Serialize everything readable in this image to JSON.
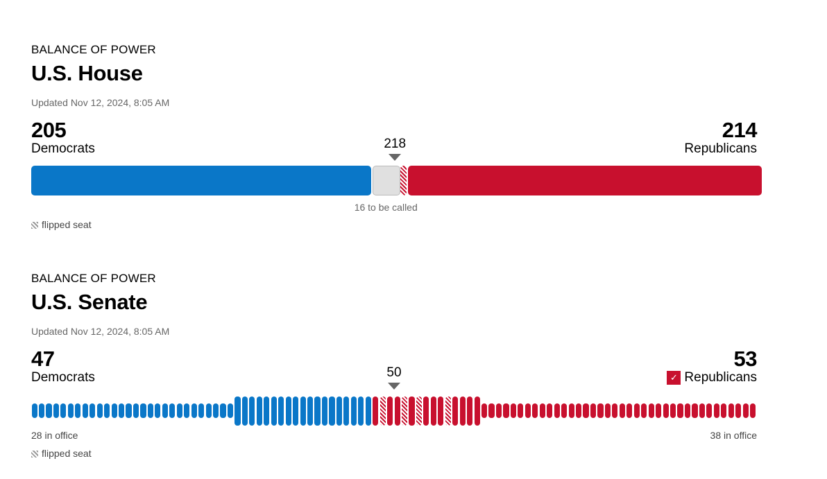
{
  "house": {
    "kicker": "BALANCE OF POWER",
    "title": "U.S. House",
    "updated": "Updated Nov 12, 2024, 8:05 AM",
    "dem_count": "205",
    "dem_label": "Democrats",
    "rep_count": "214",
    "rep_label": "Republicans",
    "threshold": "218",
    "uncalled_label": "16 to be called",
    "legend": "flipped seat"
  },
  "senate": {
    "kicker": "BALANCE OF POWER",
    "title": "U.S. Senate",
    "updated": "Updated Nov 12, 2024, 8:05 AM",
    "dem_count": "47",
    "dem_label": "Democrats",
    "rep_count": "53",
    "rep_label": "Republicans",
    "threshold": "50",
    "dem_in_office": "28 in office",
    "rep_in_office": "38 in office",
    "legend": "flipped seat",
    "check": "✓"
  },
  "colors": {
    "democrat": "#0a77c8",
    "republican": "#c8102e",
    "uncalled": "#e0e0e0",
    "threshold_marker": "#666666"
  },
  "chart_data": [
    {
      "type": "bar",
      "title": "U.S. House",
      "total_seats": 435,
      "threshold": 218,
      "segments": [
        {
          "name": "Democrats",
          "seats": 205
        },
        {
          "name": "Uncalled",
          "seats": 16
        },
        {
          "name": "Republicans flipped",
          "seats": 1
        },
        {
          "name": "Republicans",
          "seats": 213
        }
      ]
    },
    {
      "type": "bar",
      "title": "U.S. Senate",
      "total_seats": 100,
      "threshold": 50,
      "seats": [
        "D",
        "D",
        "D",
        "D",
        "D",
        "D",
        "D",
        "D",
        "D",
        "D",
        "D",
        "D",
        "D",
        "D",
        "D",
        "D",
        "D",
        "D",
        "D",
        "D",
        "D",
        "D",
        "D",
        "D",
        "D",
        "D",
        "D",
        "D",
        "D",
        "D",
        "D",
        "D",
        "D",
        "D",
        "D",
        "D",
        "D",
        "D",
        "D",
        "D",
        "D",
        "D",
        "D",
        "D",
        "D",
        "D",
        "D",
        "R",
        "Rf",
        "R",
        "R",
        "Rf",
        "R",
        "Rf",
        "R",
        "R",
        "R",
        "Rf",
        "R",
        "R",
        "R",
        "R",
        "R",
        "R",
        "R",
        "R",
        "R",
        "R",
        "R",
        "R",
        "R",
        "R",
        "R",
        "R",
        "R",
        "R",
        "R",
        "R",
        "R",
        "R",
        "R",
        "R",
        "R",
        "R",
        "R",
        "R",
        "R",
        "R",
        "R",
        "R",
        "R",
        "R",
        "R",
        "R",
        "R",
        "R",
        "R",
        "R",
        "R",
        "R"
      ],
      "dem_in_office": 28,
      "rep_in_office": 38,
      "winner": "Republicans"
    }
  ]
}
